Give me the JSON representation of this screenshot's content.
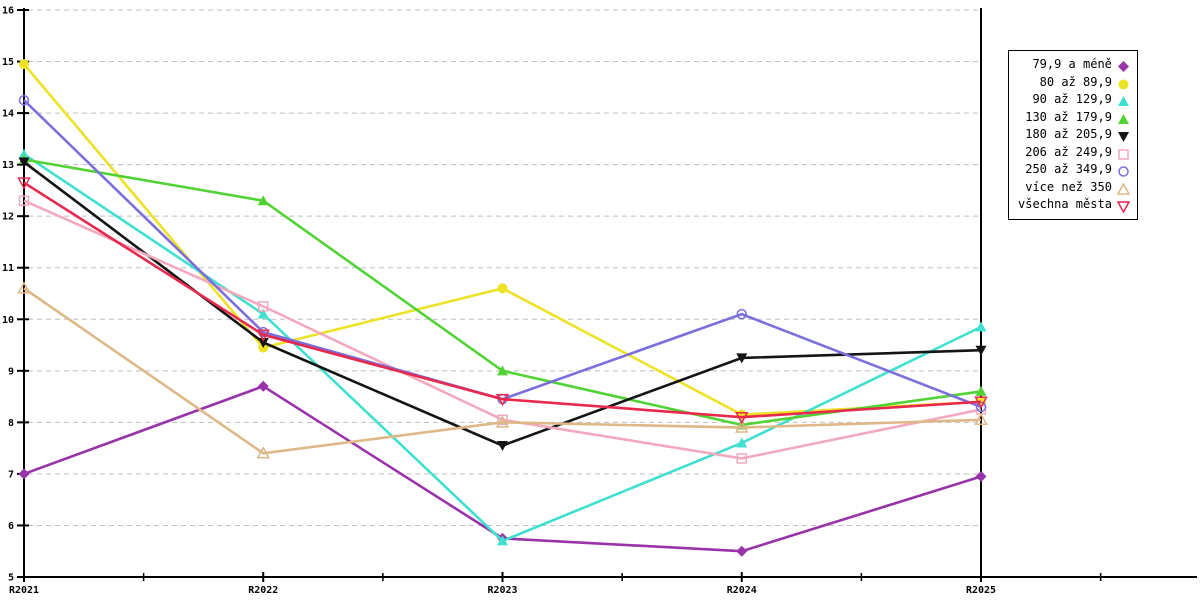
{
  "chart_data": {
    "type": "line",
    "title": "",
    "xlabel": "",
    "ylabel": "",
    "categories": [
      "R2021",
      "R2022",
      "R2023",
      "R2024",
      "R2025"
    ],
    "ylim": [
      5,
      16
    ],
    "ytick_step": 1,
    "yticks": [
      5,
      6,
      7,
      8,
      9,
      10,
      11,
      12,
      13,
      14,
      15,
      16
    ],
    "grid": "horizontal-dashed",
    "gridline_color": "#bfbfbf",
    "axis_color": "#000000",
    "legend_position": "top-right-outside",
    "series": [
      {
        "name": "79,9 a méně",
        "color": "#9933AA",
        "marker": "diamond-filled",
        "values": [
          7.0,
          8.7,
          5.75,
          5.5,
          6.95
        ]
      },
      {
        "name": "80 až 89,9",
        "color": "#EDE224",
        "marker": "circle-filled",
        "values": [
          14.95,
          9.45,
          10.6,
          8.15,
          8.4
        ]
      },
      {
        "name": "90 až 129,9",
        "color": "#3FE0D0",
        "marker": "triangle-up-filled",
        "values": [
          13.2,
          10.1,
          5.7,
          7.6,
          9.85
        ]
      },
      {
        "name": "130 až 179,9",
        "color": "#52D335",
        "marker": "triangle-up-filled",
        "values": [
          13.1,
          12.3,
          9.0,
          7.95,
          8.6
        ]
      },
      {
        "name": "180 až 205,9",
        "color": "#141414",
        "marker": "triangle-down-filled",
        "values": [
          13.05,
          9.55,
          7.55,
          9.25,
          9.4
        ]
      },
      {
        "name": "206 až 249,9",
        "color": "#F2A9BE",
        "marker": "square-open",
        "values": [
          12.3,
          10.25,
          8.05,
          7.3,
          8.25
        ]
      },
      {
        "name": "250 až 349,9",
        "color": "#7B6FDE",
        "marker": "circle-open",
        "values": [
          14.25,
          9.75,
          8.45,
          10.1,
          8.3
        ]
      },
      {
        "name": "více než 350",
        "color": "#DEB887",
        "marker": "triangle-up-open",
        "values": [
          10.6,
          7.4,
          8.0,
          7.9,
          8.05
        ]
      },
      {
        "name": "všechna města",
        "color": "#E8294E",
        "marker": "triangle-down-open",
        "values": [
          12.65,
          9.7,
          8.45,
          8.1,
          8.4
        ]
      }
    ]
  }
}
